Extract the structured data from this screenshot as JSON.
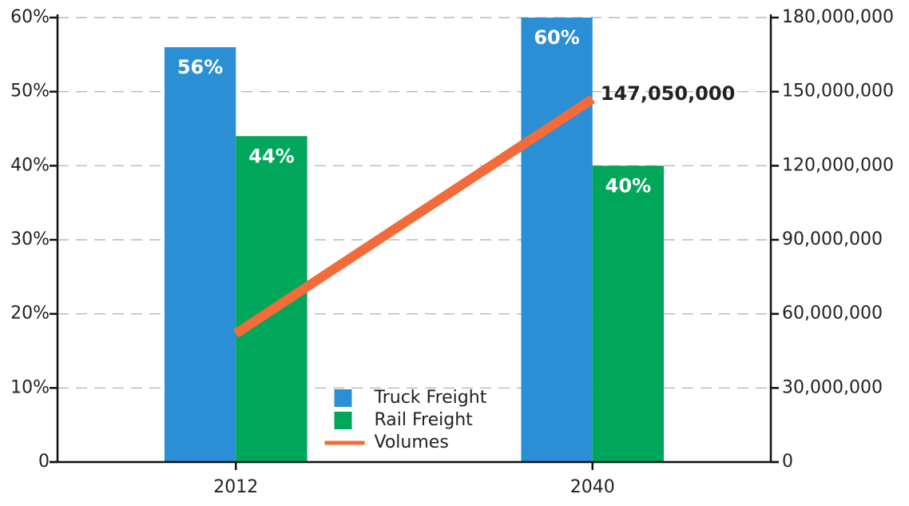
{
  "chart_data": {
    "type": "bar",
    "categories": [
      "2012",
      "2040"
    ],
    "series": [
      {
        "name": "Truck Freight",
        "color": "#2a8fd5",
        "values": [
          56,
          60
        ],
        "value_labels": [
          "56%",
          "60%"
        ]
      },
      {
        "name": "Rail Freight",
        "color": "#00a75a",
        "values": [
          44,
          40
        ],
        "value_labels": [
          "44%",
          "40%"
        ]
      },
      {
        "name": "Volumes",
        "type": "line",
        "axis": "y2",
        "color": "#f26b3a",
        "values": [
          52000000,
          147050000
        ],
        "value_labels": [
          null,
          "147,050,000"
        ]
      }
    ],
    "ylim": [
      0,
      60
    ],
    "yticks": [
      0,
      {
        "value": 10,
        "label": "10%"
      },
      {
        "value": 20,
        "label": "20%"
      },
      {
        "value": 30,
        "label": "30%"
      },
      {
        "value": 40,
        "label": "40%"
      },
      {
        "value": 50,
        "label": "50%"
      },
      {
        "value": 60,
        "label": "60%"
      }
    ],
    "y2lim": [
      0,
      180000000
    ],
    "y2ticks": [
      0,
      {
        "value": 30000000,
        "label": "30,000,000"
      },
      {
        "value": 60000000,
        "label": "60,000,000"
      },
      {
        "value": 90000000,
        "label": "90,000,000"
      },
      {
        "value": 120000000,
        "label": "120,000,000"
      },
      {
        "value": 150000000,
        "label": "150,000,000"
      },
      {
        "value": 180000000,
        "label": "180,000,000"
      }
    ],
    "grid": true,
    "legend": "bottom"
  }
}
